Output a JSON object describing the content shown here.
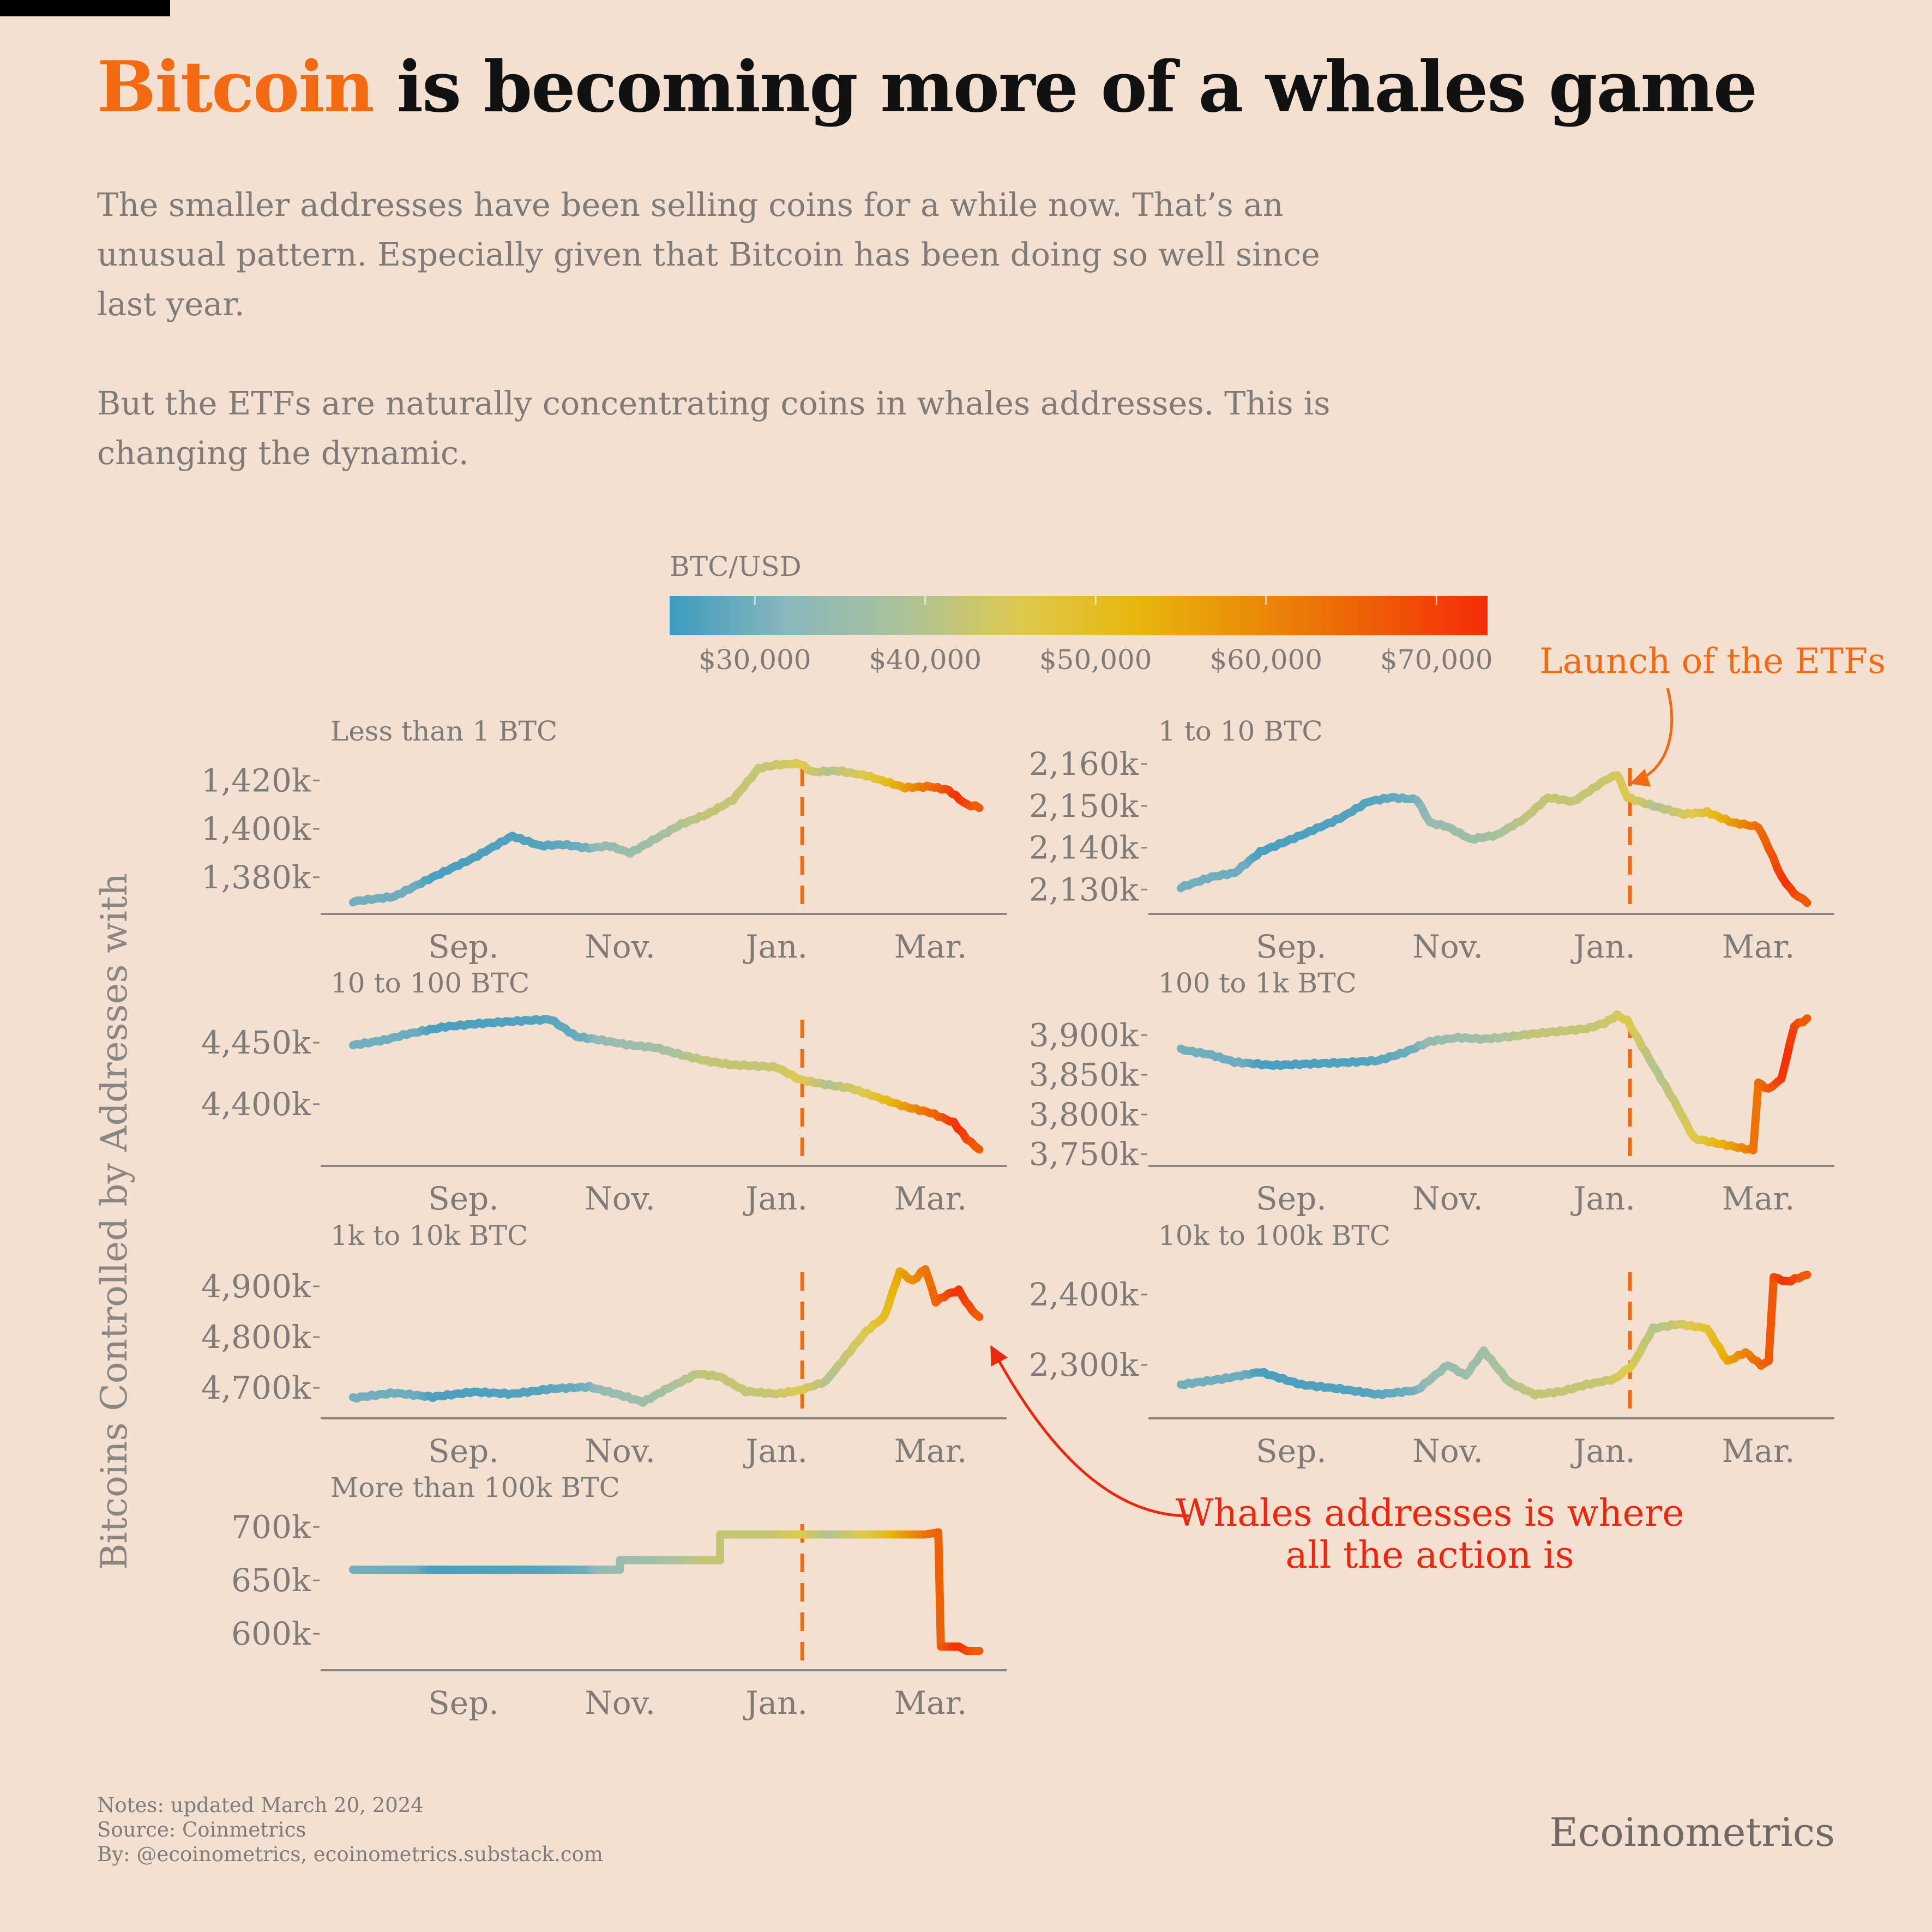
{
  "header": {
    "title_highlight": "Bitcoin",
    "title_rest": " is becoming more of a whales game",
    "subtitle_p1": "The smaller addresses have been selling coins for a while now. That’s an unusual pattern. Especially given that Bitcoin has been doing so well since last year.",
    "subtitle_p2": "But the ETFs are naturally concentrating coins in whales addresses. This is changing the dynamic."
  },
  "colors": {
    "background": "#f3e0d1",
    "accent": "#f36a12",
    "annotation_red": "#e8290f",
    "axis": "#8a8683",
    "text_muted": "#7f7b78",
    "etf_line": "#f36a12"
  },
  "legend": {
    "title": "BTC/USD",
    "ticks": [
      "$30,000",
      "$40,000",
      "$50,000",
      "$60,000",
      "$70,000"
    ],
    "tick_values": [
      30000,
      40000,
      50000,
      60000,
      70000
    ],
    "range": [
      25000,
      73000
    ],
    "gradient": [
      "#3c9bbf",
      "#89b7bd",
      "#abc29a",
      "#ddc94e",
      "#e8b60c",
      "#ea8c08",
      "#ef5e06",
      "#f42b08"
    ]
  },
  "annotations": {
    "etf_launch": "Launch of the ETFs",
    "whales_line1": "Whales addresses is where",
    "whales_line2": "all the action is"
  },
  "y_axis_label": "Bitcoins Controlled by Addresses with",
  "chart_data": {
    "type": "line",
    "x_tick_labels": [
      "Sep.",
      "Nov.",
      "Jan.",
      "Mar."
    ],
    "x_tick_dates": [
      "2023-09-01",
      "2023-11-01",
      "2024-01-01",
      "2024-03-01"
    ],
    "x_range": [
      "2023-07-18",
      "2024-03-20"
    ],
    "etf_launch_date": "2024-01-11",
    "btc_usd": [
      [
        "2023-07-20",
        29900
      ],
      [
        "2023-08-15",
        29200
      ],
      [
        "2023-08-20",
        26100
      ],
      [
        "2023-09-15",
        26600
      ],
      [
        "2023-10-01",
        27000
      ],
      [
        "2023-10-20",
        29700
      ],
      [
        "2023-10-25",
        34000
      ],
      [
        "2023-11-15",
        36500
      ],
      [
        "2023-12-05",
        42000
      ],
      [
        "2023-12-31",
        42300
      ],
      [
        "2024-01-11",
        46000
      ],
      [
        "2024-01-22",
        39500
      ],
      [
        "2024-02-09",
        47500
      ],
      [
        "2024-02-15",
        52000
      ],
      [
        "2024-02-28",
        62500
      ],
      [
        "2024-03-05",
        66000
      ],
      [
        "2024-03-12",
        72500
      ],
      [
        "2024-03-20",
        66000
      ]
    ],
    "panels": [
      {
        "title": "Less than 1 BTC",
        "y_ticks": [
          1380000,
          1400000,
          1420000
        ],
        "y_tick_labels": [
          "1,380k",
          "1,400k",
          "1,420k"
        ],
        "ylim": [
          1368000,
          1432000
        ],
        "points": [
          [
            "2023-07-20",
            1370000
          ],
          [
            "2023-08-05",
            1372000
          ],
          [
            "2023-08-20",
            1380000
          ],
          [
            "2023-09-05",
            1388000
          ],
          [
            "2023-09-20",
            1397000
          ],
          [
            "2023-10-01",
            1393000
          ],
          [
            "2023-10-10",
            1393500
          ],
          [
            "2023-10-20",
            1392000
          ],
          [
            "2023-10-28",
            1393000
          ],
          [
            "2023-11-05",
            1390000
          ],
          [
            "2023-11-15",
            1396000
          ],
          [
            "2023-11-25",
            1402000
          ],
          [
            "2023-12-05",
            1406000
          ],
          [
            "2023-12-15",
            1412000
          ],
          [
            "2023-12-25",
            1425000
          ],
          [
            "2024-01-01",
            1426500
          ],
          [
            "2024-01-10",
            1427000
          ],
          [
            "2024-01-15",
            1423500
          ],
          [
            "2024-01-25",
            1424000
          ],
          [
            "2024-02-05",
            1422000
          ],
          [
            "2024-02-20",
            1417000
          ],
          [
            "2024-03-01",
            1417500
          ],
          [
            "2024-03-08",
            1416000
          ],
          [
            "2024-03-15",
            1410000
          ],
          [
            "2024-03-20",
            1409000
          ]
        ]
      },
      {
        "title": "1 to 10 BTC",
        "y_ticks": [
          2130000,
          2140000,
          2150000,
          2160000
        ],
        "y_tick_labels": [
          "2,130k",
          "2,140k",
          "2,150k",
          "2,160k"
        ],
        "ylim": [
          2126000,
          2163000
        ],
        "points": [
          [
            "2023-07-20",
            2130500
          ],
          [
            "2023-08-01",
            2133000
          ],
          [
            "2023-08-10",
            2134000
          ],
          [
            "2023-08-20",
            2139000
          ],
          [
            "2023-09-05",
            2143000
          ],
          [
            "2023-09-20",
            2147000
          ],
          [
            "2023-10-01",
            2151000
          ],
          [
            "2023-10-10",
            2152000
          ],
          [
            "2023-10-20",
            2151500
          ],
          [
            "2023-10-25",
            2146000
          ],
          [
            "2023-11-01",
            2145000
          ],
          [
            "2023-11-10",
            2142000
          ],
          [
            "2023-11-20",
            2143000
          ],
          [
            "2023-12-01",
            2147000
          ],
          [
            "2023-12-10",
            2152000
          ],
          [
            "2023-12-20",
            2151000
          ],
          [
            "2024-01-01",
            2156000
          ],
          [
            "2024-01-06",
            2157500
          ],
          [
            "2024-01-10",
            2152000
          ],
          [
            "2024-01-20",
            2150000
          ],
          [
            "2024-02-01",
            2148000
          ],
          [
            "2024-02-10",
            2148500
          ],
          [
            "2024-02-20",
            2146000
          ],
          [
            "2024-03-01",
            2145000
          ],
          [
            "2024-03-05",
            2140000
          ],
          [
            "2024-03-10",
            2133000
          ],
          [
            "2024-03-15",
            2129000
          ],
          [
            "2024-03-20",
            2127000
          ]
        ]
      },
      {
        "title": "10 to 100 BTC",
        "y_ticks": [
          4400000,
          4450000
        ],
        "y_tick_labels": [
          "4,400k",
          "4,450k"
        ],
        "ylim": [
          4356000,
          4482000
        ],
        "points": [
          [
            "2023-07-20",
            4448000
          ],
          [
            "2023-08-01",
            4452000
          ],
          [
            "2023-08-10",
            4457000
          ],
          [
            "2023-08-25",
            4463000
          ],
          [
            "2023-09-10",
            4466000
          ],
          [
            "2023-09-25",
            4468000
          ],
          [
            "2023-10-05",
            4469000
          ],
          [
            "2023-10-15",
            4455000
          ],
          [
            "2023-10-25",
            4452000
          ],
          [
            "2023-11-05",
            4448000
          ],
          [
            "2023-11-15",
            4446000
          ],
          [
            "2023-11-25",
            4440000
          ],
          [
            "2023-12-05",
            4435000
          ],
          [
            "2023-12-15",
            4432000
          ],
          [
            "2023-12-25",
            4431000
          ],
          [
            "2024-01-01",
            4430000
          ],
          [
            "2024-01-10",
            4420000
          ],
          [
            "2024-01-20",
            4416000
          ],
          [
            "2024-01-30",
            4413000
          ],
          [
            "2024-02-10",
            4405000
          ],
          [
            "2024-02-20",
            4398000
          ],
          [
            "2024-03-01",
            4393000
          ],
          [
            "2024-03-10",
            4385000
          ],
          [
            "2024-03-15",
            4372000
          ],
          [
            "2024-03-20",
            4363000
          ]
        ]
      },
      {
        "title": "100 to 1k BTC",
        "y_ticks": [
          3750000,
          3800000,
          3850000,
          3900000
        ],
        "y_tick_labels": [
          "3,750k",
          "3,800k",
          "3,850k",
          "3,900k"
        ],
        "ylim": [
          3745000,
          3940000
        ],
        "points": [
          [
            "2023-07-20",
            3882000
          ],
          [
            "2023-08-01",
            3875000
          ],
          [
            "2023-08-10",
            3866000
          ],
          [
            "2023-08-25",
            3862000
          ],
          [
            "2023-09-10",
            3864000
          ],
          [
            "2023-09-25",
            3866000
          ],
          [
            "2023-10-05",
            3868000
          ],
          [
            "2023-10-15",
            3878000
          ],
          [
            "2023-10-25",
            3892000
          ],
          [
            "2023-11-05",
            3897000
          ],
          [
            "2023-11-15",
            3895000
          ],
          [
            "2023-11-25",
            3898000
          ],
          [
            "2023-12-05",
            3902000
          ],
          [
            "2023-12-15",
            3905000
          ],
          [
            "2023-12-25",
            3908000
          ],
          [
            "2024-01-01",
            3915000
          ],
          [
            "2024-01-06",
            3925000
          ],
          [
            "2024-01-10",
            3918000
          ],
          [
            "2024-01-20",
            3862000
          ],
          [
            "2024-01-28",
            3818000
          ],
          [
            "2024-02-05",
            3770000
          ],
          [
            "2024-02-15",
            3763000
          ],
          [
            "2024-02-25",
            3757000
          ],
          [
            "2024-02-28",
            3755000
          ],
          [
            "2024-03-01",
            3840000
          ],
          [
            "2024-03-05",
            3832000
          ],
          [
            "2024-03-10",
            3845000
          ],
          [
            "2024-03-15",
            3912000
          ],
          [
            "2024-03-20",
            3920000
          ]
        ]
      },
      {
        "title": "1k to 10k BTC",
        "y_ticks": [
          4700000,
          4800000,
          4900000
        ],
        "y_tick_labels": [
          "4,700k",
          "4,800k",
          "4,900k"
        ],
        "ylim": [
          4655000,
          4960000
        ],
        "points": [
          [
            "2023-07-20",
            4680000
          ],
          [
            "2023-08-05",
            4690000
          ],
          [
            "2023-08-20",
            4682000
          ],
          [
            "2023-09-05",
            4692000
          ],
          [
            "2023-09-20",
            4688000
          ],
          [
            "2023-10-05",
            4698000
          ],
          [
            "2023-10-20",
            4702000
          ],
          [
            "2023-11-01",
            4686000
          ],
          [
            "2023-11-10",
            4672000
          ],
          [
            "2023-11-20",
            4700000
          ],
          [
            "2023-12-01",
            4728000
          ],
          [
            "2023-12-10",
            4722000
          ],
          [
            "2023-12-20",
            4693000
          ],
          [
            "2024-01-01",
            4688000
          ],
          [
            "2024-01-10",
            4695000
          ],
          [
            "2024-01-20",
            4712000
          ],
          [
            "2024-01-28",
            4762000
          ],
          [
            "2024-02-05",
            4812000
          ],
          [
            "2024-02-12",
            4840000
          ],
          [
            "2024-02-18",
            4930000
          ],
          [
            "2024-02-23",
            4910000
          ],
          [
            "2024-02-28",
            4935000
          ],
          [
            "2024-03-03",
            4870000
          ],
          [
            "2024-03-08",
            4885000
          ],
          [
            "2024-03-12",
            4892000
          ],
          [
            "2024-03-16",
            4860000
          ],
          [
            "2024-03-20",
            4838000
          ]
        ]
      },
      {
        "title": "10k to 100k BTC",
        "y_ticks": [
          2300000,
          2400000
        ],
        "y_tick_labels": [
          "2,300k",
          "2,400k"
        ],
        "ylim": [
          2235000,
          2455000
        ],
        "points": [
          [
            "2023-07-20",
            2272000
          ],
          [
            "2023-08-05",
            2280000
          ],
          [
            "2023-08-20",
            2290000
          ],
          [
            "2023-09-05",
            2272000
          ],
          [
            "2023-09-20",
            2266000
          ],
          [
            "2023-10-05",
            2258000
          ],
          [
            "2023-10-20",
            2264000
          ],
          [
            "2023-11-01",
            2300000
          ],
          [
            "2023-11-08",
            2285000
          ],
          [
            "2023-11-15",
            2320000
          ],
          [
            "2023-11-25",
            2275000
          ],
          [
            "2023-12-05",
            2258000
          ],
          [
            "2023-12-15",
            2262000
          ],
          [
            "2023-12-25",
            2272000
          ],
          [
            "2024-01-05",
            2280000
          ],
          [
            "2024-01-12",
            2300000
          ],
          [
            "2024-01-20",
            2352000
          ],
          [
            "2024-01-30",
            2358000
          ],
          [
            "2024-02-10",
            2352000
          ],
          [
            "2024-02-18",
            2305000
          ],
          [
            "2024-02-25",
            2318000
          ],
          [
            "2024-03-02",
            2300000
          ],
          [
            "2024-03-05",
            2305000
          ],
          [
            "2024-03-07",
            2425000
          ],
          [
            "2024-03-12",
            2418000
          ],
          [
            "2024-03-20",
            2428000
          ]
        ]
      },
      {
        "title": "More than 100k BTC",
        "y_ticks": [
          600000,
          650000,
          700000
        ],
        "y_tick_labels": [
          "600k",
          "650k",
          "700k"
        ],
        "ylim": [
          573000,
          718000
        ],
        "step": true,
        "points": [
          [
            "2023-07-20",
            660000
          ],
          [
            "2023-11-01",
            660000
          ],
          [
            "2023-11-01",
            669000
          ],
          [
            "2023-12-10",
            669000
          ],
          [
            "2023-12-10",
            693000
          ],
          [
            "2024-02-28",
            693000
          ],
          [
            "2024-03-04",
            695000
          ],
          [
            "2024-03-05",
            588000
          ],
          [
            "2024-03-12",
            588000
          ],
          [
            "2024-03-15",
            584000
          ],
          [
            "2024-03-20",
            584000
          ]
        ]
      }
    ]
  },
  "footer": {
    "notes": "Notes: updated March 20, 2024",
    "source": "Source: Coinmetrics",
    "by": "By: @ecoinometrics, ecoinometrics.substack.com",
    "brand": "Ecoinometrics"
  }
}
